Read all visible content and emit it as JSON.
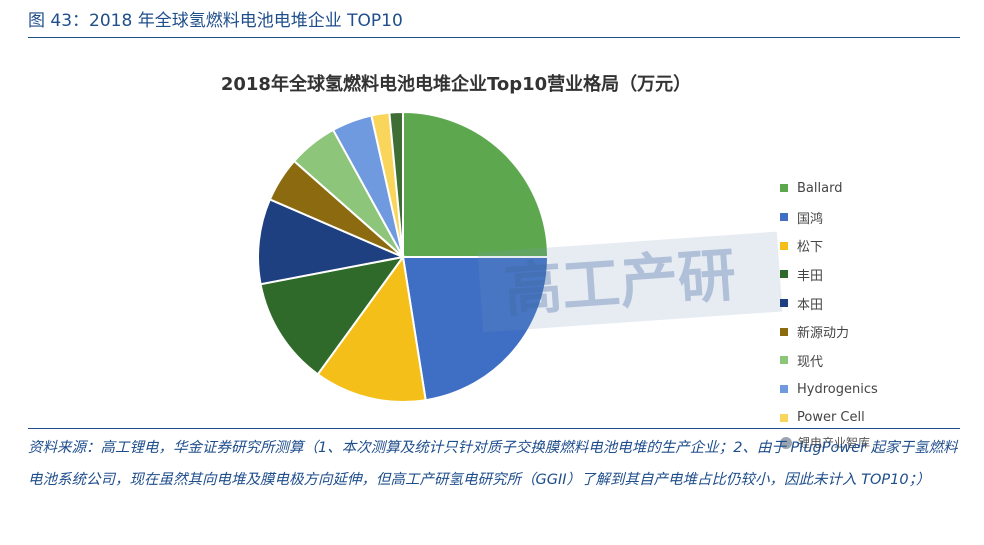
{
  "figure": {
    "title": "图 43：2018 年全球氢燃料电池电堆企业 TOP10"
  },
  "chart_data": {
    "type": "pie",
    "title": "2018年全球氢燃料电池电堆企业Top10营业格局（万元）",
    "legend_position": "right",
    "start_angle_deg": 0,
    "direction": "clockwise",
    "slices": [
      {
        "name": "Ballard",
        "value": 25.0,
        "color": "#5da84e"
      },
      {
        "name": "国鸿",
        "value": 22.5,
        "color": "#3f6fc4"
      },
      {
        "name": "松下",
        "value": 12.5,
        "color": "#f5bf1a"
      },
      {
        "name": "丰田",
        "value": 12.0,
        "color": "#2f6a2b"
      },
      {
        "name": "本田",
        "value": 9.5,
        "color": "#1e3f80"
      },
      {
        "name": "新源动力",
        "value": 5.0,
        "color": "#8c6b10"
      },
      {
        "name": "现代",
        "value": 5.5,
        "color": "#8dc57a"
      },
      {
        "name": "Hydrogenics",
        "value": 4.5,
        "color": "#6f9ae0"
      },
      {
        "name": "Power Cell",
        "value": 2.0,
        "color": "#fad55c"
      },
      {
        "name": "",
        "value": 1.5,
        "color": "#3e6e36"
      }
    ]
  },
  "watermark": {
    "text": "高工产研"
  },
  "wechat": {
    "label": "锂电产业智库"
  },
  "source": {
    "text": "资料来源：高工锂电，华金证券研究所测算（1、本次测算及统计只针对质子交换膜燃料电池电堆的生产企业；2、由于 PlugPower 起家于氢燃料电池系统公司，现在虽然其向电堆及膜电极方向延伸，但高工产研氢电研究所（GGII）了解到其自产电堆占比仍较小，因此未计入 TOP10；）"
  }
}
